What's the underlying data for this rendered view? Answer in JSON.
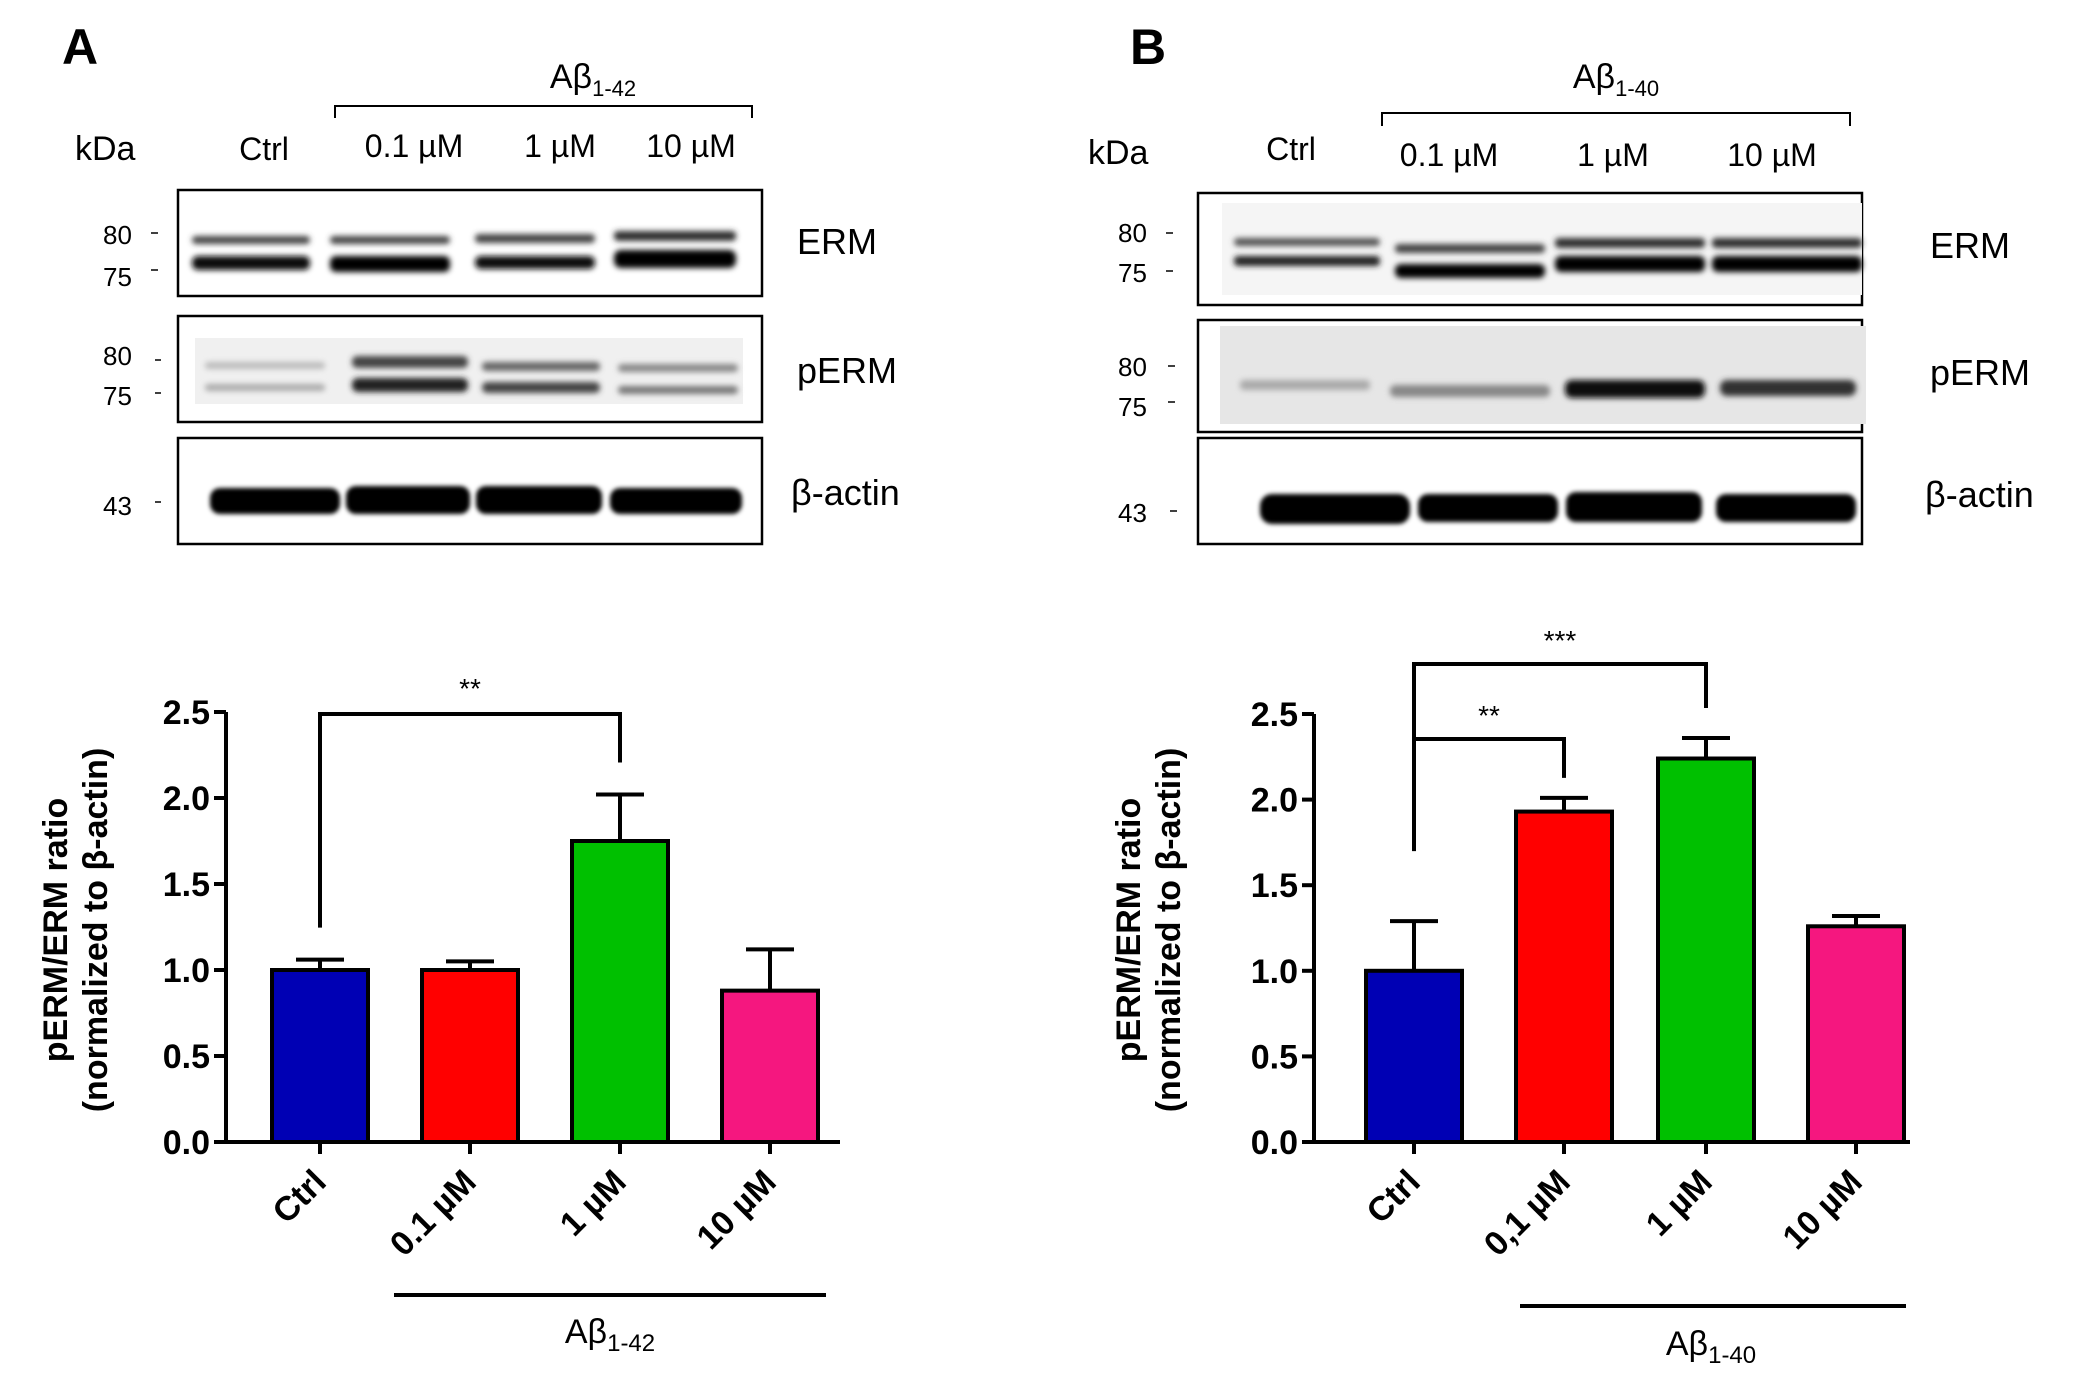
{
  "panels": [
    {
      "letter": "A",
      "peptide_base": "Aβ",
      "peptide_sub": "1-42",
      "blot": {
        "kda_label": "kDa",
        "lanes": [
          "Ctrl",
          "0.1 µM",
          "1 µM",
          "10 µM"
        ],
        "rows": [
          {
            "label": "ERM",
            "markers": [
              "80",
              "75"
            ]
          },
          {
            "label": "pERM",
            "markers": [
              "80",
              "75"
            ]
          },
          {
            "label": "β-actin",
            "markers": [
              "43"
            ]
          }
        ]
      },
      "xticks": [
        "Ctrl",
        "0.1 µM",
        "1 µM",
        "10 µM"
      ],
      "sig": [
        {
          "from": 0,
          "to": 2,
          "label": "**"
        }
      ]
    },
    {
      "letter": "B",
      "peptide_base": "Aβ",
      "peptide_sub": "1-40",
      "blot": {
        "kda_label": "kDa",
        "lanes": [
          "Ctrl",
          "0.1 µM",
          "1 µM",
          "10 µM"
        ],
        "rows": [
          {
            "label": "ERM",
            "markers": [
              "80",
              "75"
            ]
          },
          {
            "label": "pERM",
            "markers": [
              "80",
              "75"
            ]
          },
          {
            "label": "β-actin",
            "markers": [
              "43"
            ]
          }
        ]
      },
      "xticks": [
        "Ctrl",
        "0,1 µM",
        "1 µM",
        "10 µM"
      ],
      "sig": [
        {
          "from": 0,
          "to": 1,
          "label": "**"
        },
        {
          "from": 0,
          "to": 2,
          "label": "***"
        }
      ]
    }
  ],
  "colors": {
    "ctrl": "#0000b4",
    "c01": "#ff0000",
    "c1": "#00c000",
    "c10": "#f5177f"
  },
  "chart_data": [
    {
      "type": "bar",
      "categories": [
        "Ctrl",
        "0.1 µM",
        "1 µM",
        "10 µM"
      ],
      "values": [
        1.0,
        1.0,
        1.75,
        0.88
      ],
      "errors": [
        0.06,
        0.05,
        0.27,
        0.24
      ],
      "ylabel_line1": "pERM/ERM ratio",
      "ylabel_line2": "(normalized to β-actin)",
      "ylim": [
        0,
        2.5
      ],
      "yticks": [
        "0.0",
        "0.5",
        "1.0",
        "1.5",
        "2.0",
        "2.5"
      ]
    },
    {
      "type": "bar",
      "categories": [
        "Ctrl",
        "0,1 µM",
        "1 µM",
        "10 µM"
      ],
      "values": [
        1.0,
        1.93,
        2.24,
        1.26
      ],
      "errors": [
        0.29,
        0.08,
        0.12,
        0.06
      ],
      "ylabel_line1": "pERM/ERM ratio",
      "ylabel_line2": "(normalized to β-actin)",
      "ylim": [
        0,
        2.5
      ],
      "yticks": [
        "0.0",
        "0.5",
        "1.0",
        "1.5",
        "2.0",
        "2.5"
      ]
    }
  ]
}
